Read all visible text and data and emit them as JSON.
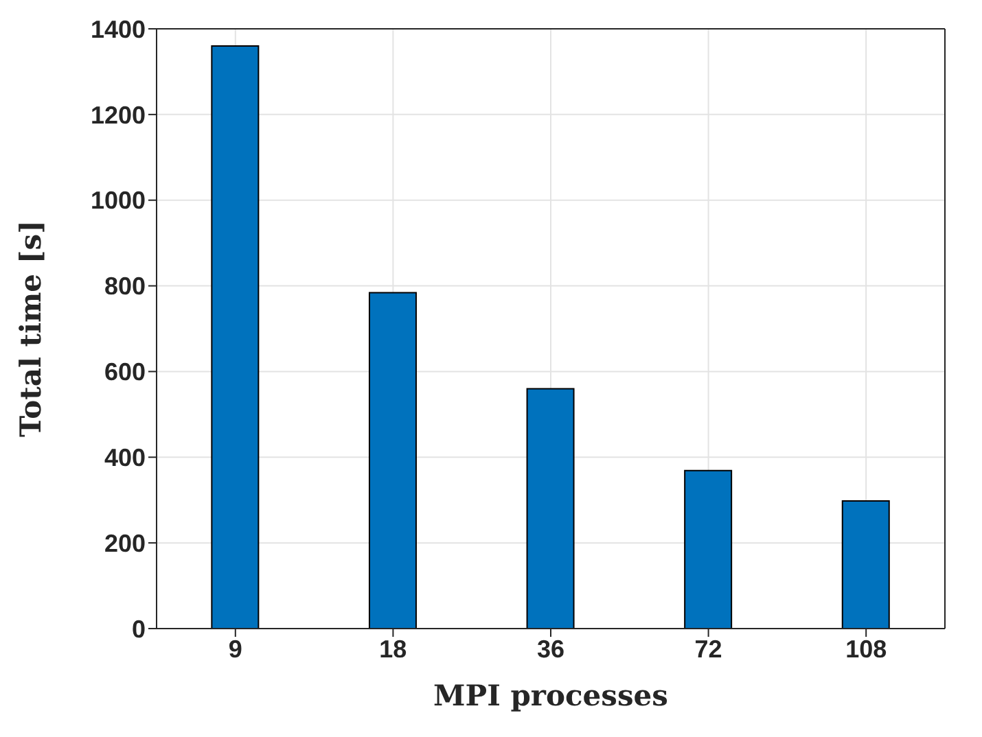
{
  "chart_data": {
    "type": "bar",
    "xlabel": "MPI processes",
    "ylabel": "Total time [s]",
    "categories": [
      "9",
      "18",
      "36",
      "72",
      "108"
    ],
    "values": [
      1360,
      784,
      560,
      369,
      298
    ],
    "color": "#0072bd",
    "ylim": [
      0,
      1400
    ],
    "yticks": [
      0,
      200,
      400,
      600,
      800,
      1000,
      1200,
      1400
    ],
    "grid": true
  }
}
